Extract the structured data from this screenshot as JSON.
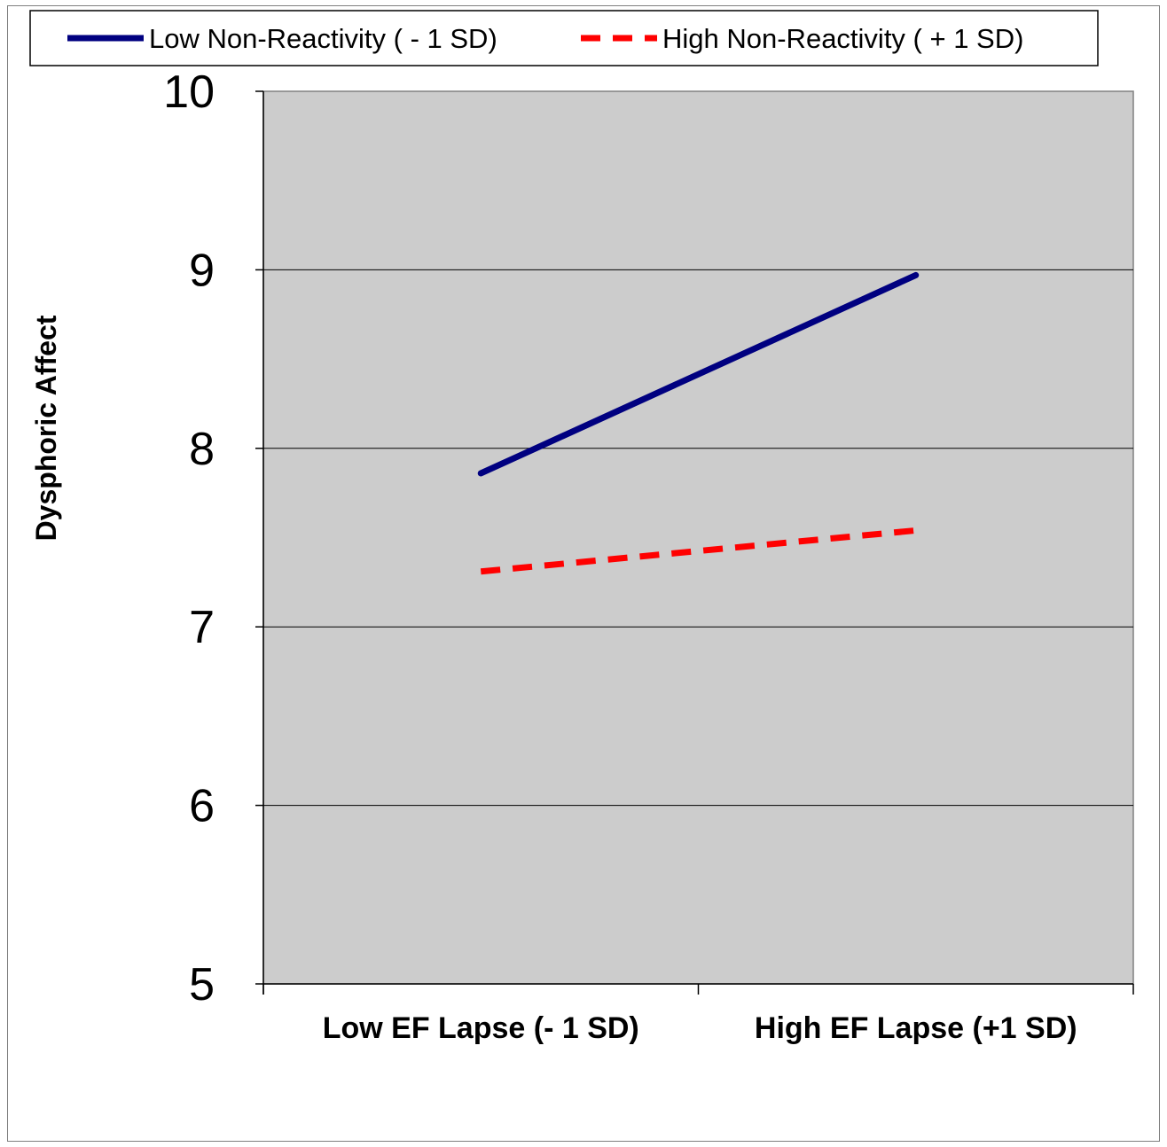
{
  "chart_data": {
    "type": "line",
    "categories": [
      "Low EF Lapse (- 1 SD)",
      "High EF Lapse (+1 SD)"
    ],
    "series": [
      {
        "name": "Low Non-Reactivity ( - 1 SD)",
        "values": [
          7.86,
          8.97
        ],
        "color": "#000080",
        "style": "solid"
      },
      {
        "name": "High Non-Reactivity ( + 1 SD)",
        "values": [
          7.31,
          7.54
        ],
        "color": "#ff0000",
        "style": "dashed"
      }
    ],
    "title": "",
    "xlabel": "",
    "ylabel": "Dysphoric Affect",
    "ylim": [
      5,
      10
    ],
    "yticks": [
      "5",
      "6",
      "7",
      "8",
      "9",
      "10"
    ],
    "grid": true,
    "legend_position": "top",
    "plot_background": "#cccccc"
  }
}
